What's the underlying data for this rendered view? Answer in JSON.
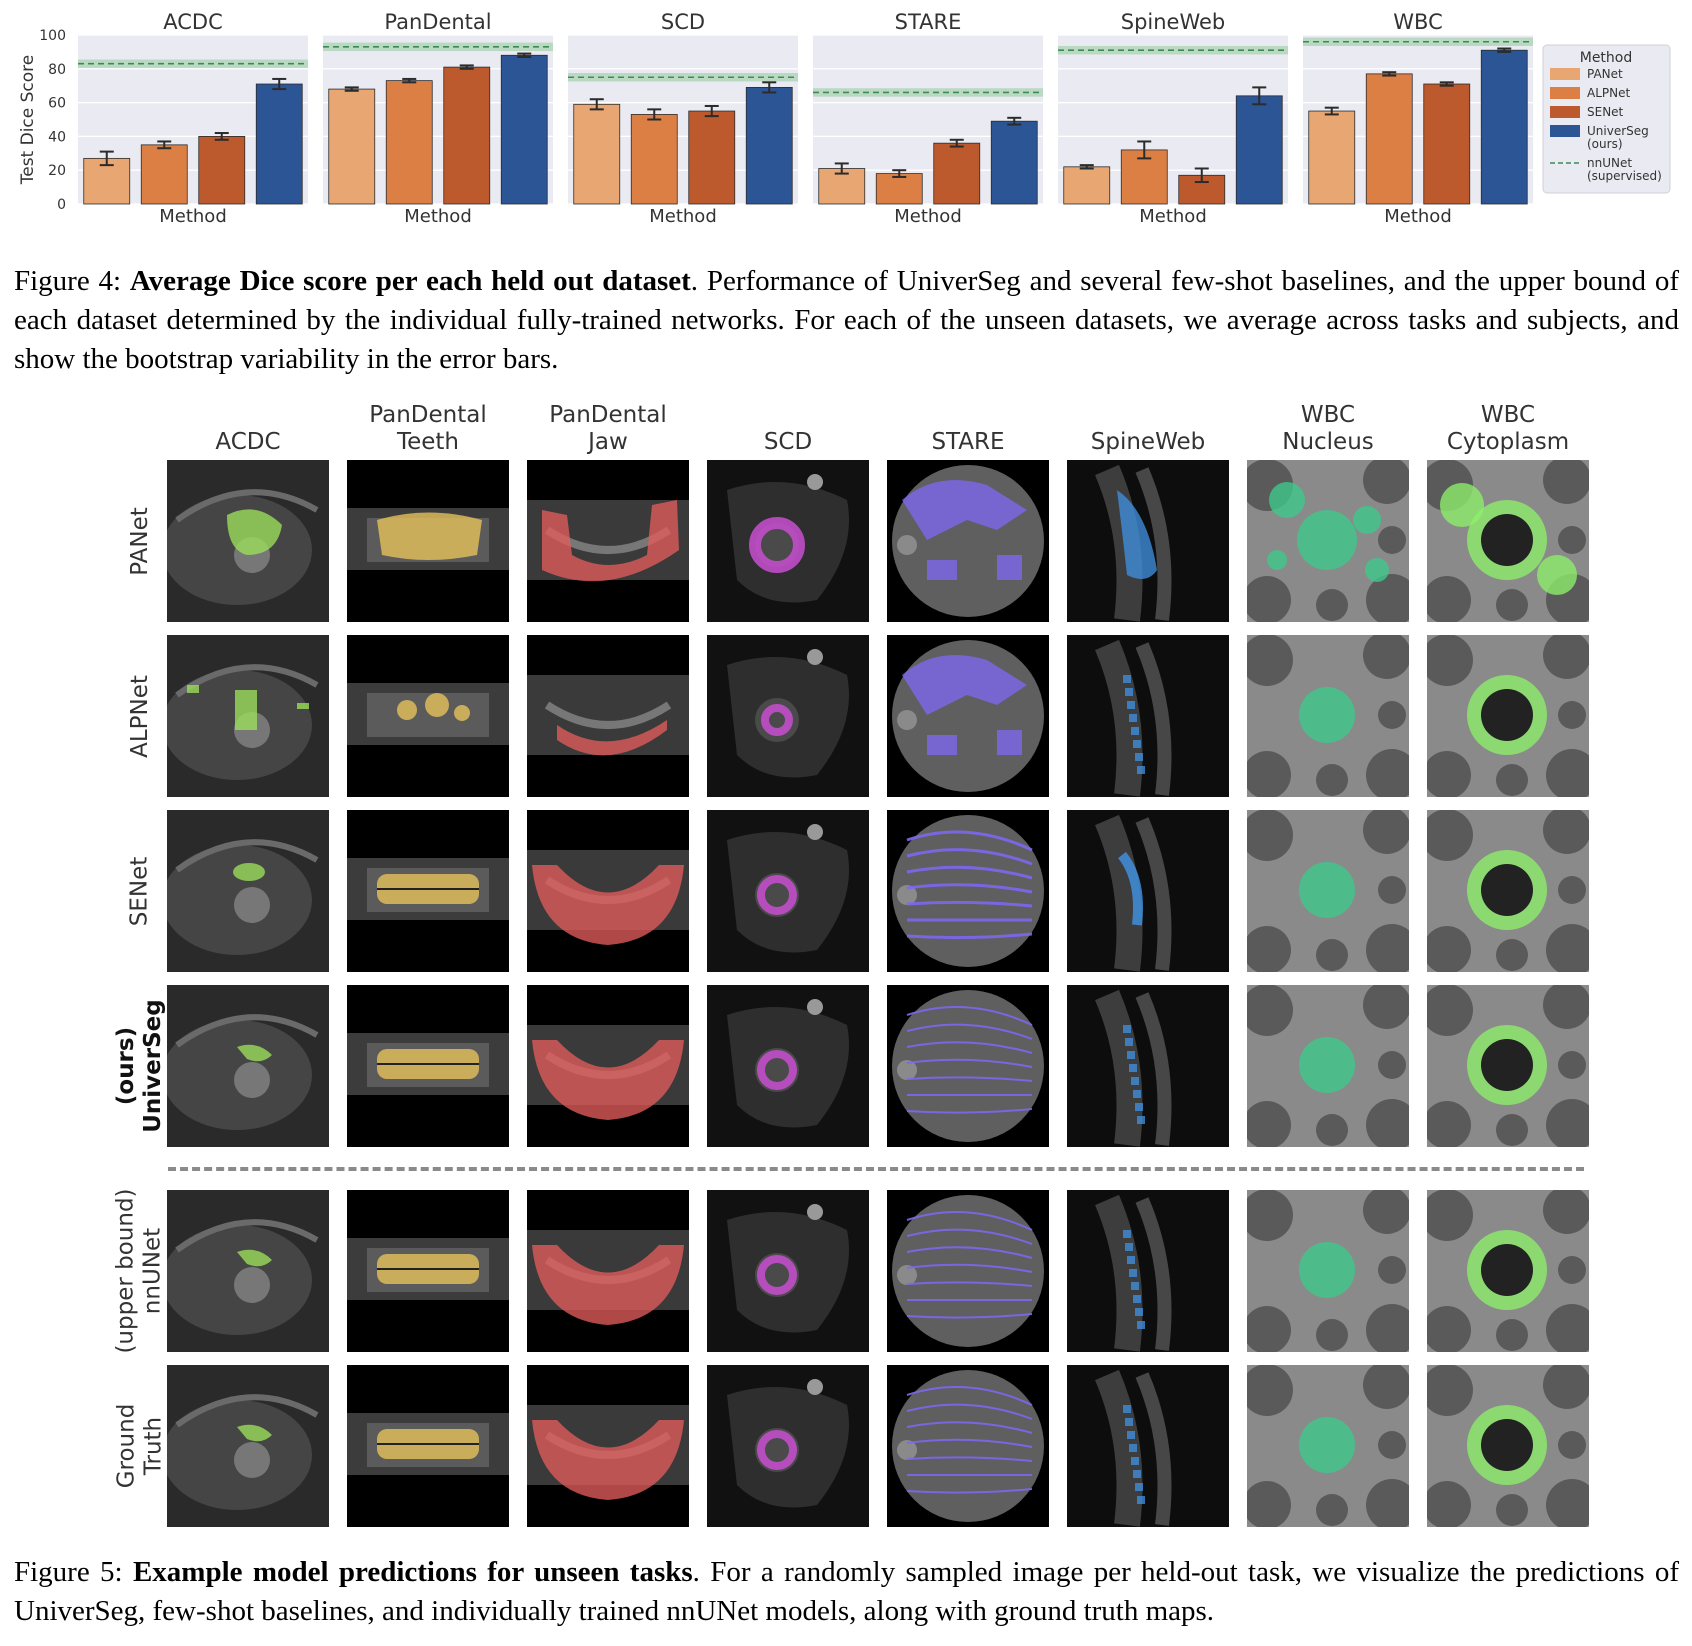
{
  "fig4": {
    "caption_prefix": "Figure 4: ",
    "caption_bold": "Average Dice score per each held out dataset",
    "caption_rest": ". Performance of UniverSeg and several few-shot baselines, and the upper bound of each dataset determined by the individual fully-trained networks. For each of the unseen datasets, we average across tasks and subjects, and show the bootstrap variability in the error bars."
  },
  "chart_data": {
    "type": "bar",
    "ylabel": "Test Dice Score",
    "xlabel": "Method",
    "ylim": [
      0,
      100
    ],
    "yticks": [
      0,
      20,
      40,
      60,
      80,
      100
    ],
    "grid": true,
    "legend_title": "Method",
    "legend_position": "right",
    "series": [
      {
        "name": "PANet",
        "color": "#e8a673"
      },
      {
        "name": "ALPNet",
        "color": "#db7f45"
      },
      {
        "name": "SENet",
        "color": "#bc5a2d"
      },
      {
        "name": "UniverSeg",
        "name_line2": "(ours)",
        "color": "#2c5596"
      }
    ],
    "reference": {
      "name": "nnUNet",
      "name_line2": "(supervised)",
      "color": "#3d8a55"
    },
    "panels": [
      {
        "title": "ACDC",
        "values": [
          27,
          35,
          40,
          71
        ],
        "errors": [
          4,
          2,
          2,
          3
        ],
        "nnunet": 83
      },
      {
        "title": "PanDental",
        "values": [
          68,
          73,
          81,
          88
        ],
        "errors": [
          1,
          1,
          1,
          1
        ],
        "nnunet": 93
      },
      {
        "title": "SCD",
        "values": [
          59,
          53,
          55,
          69
        ],
        "errors": [
          3,
          3,
          3,
          3
        ],
        "nnunet": 75
      },
      {
        "title": "STARE",
        "values": [
          21,
          18,
          36,
          49
        ],
        "errors": [
          3,
          2,
          2,
          2
        ],
        "nnunet": 66
      },
      {
        "title": "SpineWeb",
        "values": [
          22,
          32,
          17,
          64
        ],
        "errors": [
          1,
          5,
          4,
          5
        ],
        "nnunet": 91
      },
      {
        "title": "WBC",
        "values": [
          55,
          77,
          71,
          91
        ],
        "errors": [
          2,
          1,
          1,
          1
        ],
        "nnunet": 96
      }
    ]
  },
  "fig5": {
    "caption_prefix": "Figure 5: ",
    "caption_bold": "Example model predictions for unseen tasks",
    "caption_rest": ". For a randomly sampled image per held-out task, we visualize the predictions of UniverSeg, few-shot baselines, and individually trained nnUNet models, along with ground truth maps.",
    "columns": [
      {
        "line1": "",
        "line2": "ACDC"
      },
      {
        "line1": "PanDental",
        "line2": "Teeth"
      },
      {
        "line1": "PanDental",
        "line2": "Jaw"
      },
      {
        "line1": "",
        "line2": "SCD"
      },
      {
        "line1": "",
        "line2": "STARE"
      },
      {
        "line1": "",
        "line2": "SpineWeb"
      },
      {
        "line1": "WBC",
        "line2": "Nucleus"
      },
      {
        "line1": "WBC",
        "line2": "Cytoplasm"
      }
    ],
    "rows": [
      {
        "line1": "PANet",
        "line2": "",
        "bold": false
      },
      {
        "line1": "ALPNet",
        "line2": "",
        "bold": false
      },
      {
        "line1": "SENet",
        "line2": "",
        "bold": false
      },
      {
        "line1": "UniverSeg",
        "line2": "(ours)",
        "bold": true
      },
      {
        "line1": "nnUNet",
        "line2": "(upper bound)",
        "bold": false
      },
      {
        "line1": "Truth",
        "line2": "Ground",
        "bold": false
      }
    ],
    "mask_colors": [
      "#9be05a",
      "#e8c45a",
      "#e25c5c",
      "#c84fd0",
      "#7e66ef",
      "#3f8fdc",
      "#3cc98a",
      "#8ef06a"
    ]
  }
}
